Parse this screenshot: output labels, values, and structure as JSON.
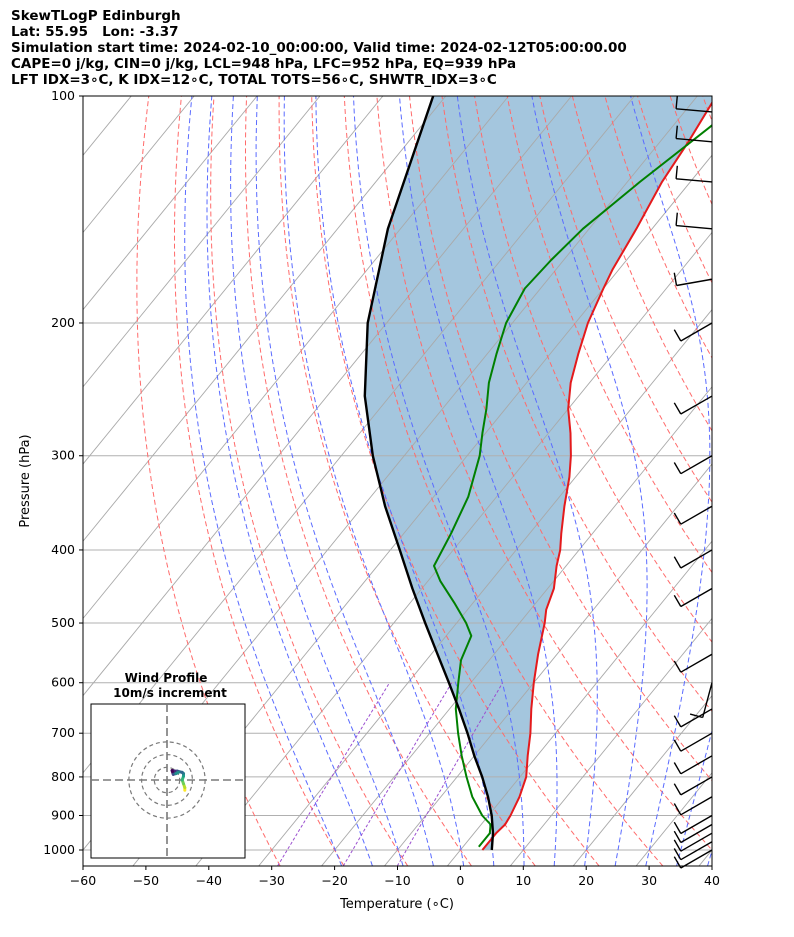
{
  "header": {
    "line1": "SkewTLogP Edinburgh",
    "line2": "Lat: 55.95   Lon: -3.37",
    "line3": "Simulation start time: 2024-02-10_00:00:00, Valid time: 2024-02-12T05:00:00.00",
    "line4": "CAPE=0 j/kg, CIN=0 j/kg, LCL=948 hPa, LFC=952 hPa, EQ=939 hPa",
    "line5": "LFT IDX=3∘C, K IDX=12∘C, TOTAL TOTS=56∘C, SHWTR_IDX=3∘C"
  },
  "chart_data": [
    {
      "type": "line",
      "chart": "skew-t-logp",
      "xlabel": "Temperature (∘C)",
      "ylabel": "Pressure (hPa)",
      "xlim": [
        -60,
        40
      ],
      "ylim": [
        1050,
        100
      ],
      "y_scale": "log",
      "x_ticks": [
        -60,
        -50,
        -40,
        -30,
        -20,
        -10,
        0,
        10,
        20,
        30,
        40
      ],
      "x_tick_labels": [
        "−60",
        "−50",
        "−40",
        "−30",
        "−20",
        "−10",
        "0",
        "10",
        "20",
        "30",
        "40"
      ],
      "y_ticks": [
        1000,
        900,
        800,
        700,
        600,
        500,
        400,
        300,
        200,
        100
      ],
      "grid": true,
      "series": [
        {
          "role": "temperature",
          "color": "#e41a1c",
          "points": [
            [
              1000,
              3.5
            ],
            [
              950,
              3.5
            ],
            [
              925,
              3.8
            ],
            [
              900,
              3.5
            ],
            [
              850,
              2.5
            ],
            [
              800,
              1
            ],
            [
              750,
              -1.5
            ],
            [
              700,
              -4
            ],
            [
              650,
              -7
            ],
            [
              600,
              -10
            ],
            [
              550,
              -13
            ],
            [
              500,
              -16
            ],
            [
              480,
              -17.5
            ],
            [
              450,
              -19
            ],
            [
              420,
              -21.5
            ],
            [
              400,
              -23
            ],
            [
              380,
              -25
            ],
            [
              350,
              -28
            ],
            [
              320,
              -31
            ],
            [
              300,
              -33.5
            ],
            [
              280,
              -36.5
            ],
            [
              260,
              -40
            ],
            [
              240,
              -43
            ],
            [
              220,
              -45.5
            ],
            [
              200,
              -48
            ],
            [
              180,
              -50
            ],
            [
              170,
              -51
            ],
            [
              150,
              -52.5
            ],
            [
              130,
              -54.5
            ],
            [
              115,
              -55.5
            ],
            [
              100,
              -57
            ]
          ]
        },
        {
          "role": "dewpoint",
          "color": "#008000",
          "points": [
            [
              990,
              2.5
            ],
            [
              950,
              2.5
            ],
            [
              925,
              1.5
            ],
            [
              900,
              -1
            ],
            [
              850,
              -5
            ],
            [
              800,
              -8.5
            ],
            [
              750,
              -12
            ],
            [
              700,
              -15.5
            ],
            [
              650,
              -19
            ],
            [
              600,
              -22
            ],
            [
              560,
              -24.5
            ],
            [
              520,
              -26
            ],
            [
              500,
              -28.5
            ],
            [
              470,
              -33
            ],
            [
              440,
              -38
            ],
            [
              420,
              -41
            ],
            [
              380,
              -42.5
            ],
            [
              340,
              -44.5
            ],
            [
              300,
              -48
            ],
            [
              280,
              -50.5
            ],
            [
              260,
              -53
            ],
            [
              240,
              -56
            ],
            [
              220,
              -58.5
            ],
            [
              200,
              -61
            ],
            [
              180,
              -62.5
            ],
            [
              165,
              -62
            ],
            [
              150,
              -61
            ],
            [
              130,
              -58
            ],
            [
              110,
              -54
            ],
            [
              100,
              -52
            ]
          ]
        },
        {
          "role": "parcel",
          "color": "#000000",
          "points": [
            [
              1000,
              5
            ],
            [
              950,
              3
            ],
            [
              900,
              0.5
            ],
            [
              850,
              -2.5
            ],
            [
              800,
              -6
            ],
            [
              750,
              -10
            ],
            [
              700,
              -14
            ],
            [
              650,
              -18.5
            ],
            [
              600,
              -23.5
            ],
            [
              550,
              -29
            ],
            [
              500,
              -35
            ],
            [
              450,
              -41.5
            ],
            [
              400,
              -48.5
            ],
            [
              350,
              -56.5
            ],
            [
              300,
              -65
            ],
            [
              250,
              -74
            ],
            [
              200,
              -83
            ],
            [
              150,
              -92
            ],
            [
              100,
              -102
            ]
          ]
        }
      ],
      "shading": {
        "between": [
          "parcel",
          "temperature"
        ],
        "color": "#a4c6de"
      },
      "wind_barbs": [
        {
          "p": 1000,
          "speed_kt": 10,
          "dir_deg": 240
        },
        {
          "p": 975,
          "speed_kt": 10,
          "dir_deg": 240
        },
        {
          "p": 950,
          "speed_kt": 10,
          "dir_deg": 240
        },
        {
          "p": 925,
          "speed_kt": 10,
          "dir_deg": 240
        },
        {
          "p": 900,
          "speed_kt": 10,
          "dir_deg": 240
        },
        {
          "p": 850,
          "speed_kt": 10,
          "dir_deg": 240
        },
        {
          "p": 800,
          "speed_kt": 10,
          "dir_deg": 240
        },
        {
          "p": 750,
          "speed_kt": 10,
          "dir_deg": 240
        },
        {
          "p": 700,
          "speed_kt": 10,
          "dir_deg": 240
        },
        {
          "p": 650,
          "speed_kt": 10,
          "dir_deg": 240
        },
        {
          "p": 600,
          "speed_kt": 10,
          "dir_deg": 195
        },
        {
          "p": 550,
          "speed_kt": 10,
          "dir_deg": 240
        },
        {
          "p": 450,
          "speed_kt": 10,
          "dir_deg": 240
        },
        {
          "p": 400,
          "speed_kt": 10,
          "dir_deg": 240
        },
        {
          "p": 350,
          "speed_kt": 10,
          "dir_deg": 240
        },
        {
          "p": 300,
          "speed_kt": 10,
          "dir_deg": 240
        },
        {
          "p": 250,
          "speed_kt": 10,
          "dir_deg": 240
        },
        {
          "p": 200,
          "speed_kt": 10,
          "dir_deg": 240
        },
        {
          "p": 175,
          "speed_kt": 10,
          "dir_deg": 260
        },
        {
          "p": 150,
          "speed_kt": 10,
          "dir_deg": 275
        },
        {
          "p": 130,
          "speed_kt": 10,
          "dir_deg": 275
        },
        {
          "p": 115,
          "speed_kt": 10,
          "dir_deg": 275
        },
        {
          "p": 105,
          "speed_kt": 10,
          "dir_deg": 275
        }
      ]
    },
    {
      "type": "line",
      "chart": "hodograph",
      "title": "Wind Profile",
      "subtitle": "10m/s increment",
      "ring_increment_ms": 10,
      "rings": [
        10,
        20,
        30
      ],
      "uv": [
        [
          14,
          -8
        ],
        [
          14,
          -6
        ],
        [
          13,
          -3
        ],
        [
          12,
          0
        ],
        [
          13,
          3
        ],
        [
          13,
          5
        ],
        [
          12,
          6
        ],
        [
          8,
          7
        ],
        [
          6,
          7
        ],
        [
          4,
          7.5
        ],
        [
          5,
          4.5
        ],
        [
          7,
          5
        ],
        [
          9,
          6
        ]
      ]
    }
  ]
}
